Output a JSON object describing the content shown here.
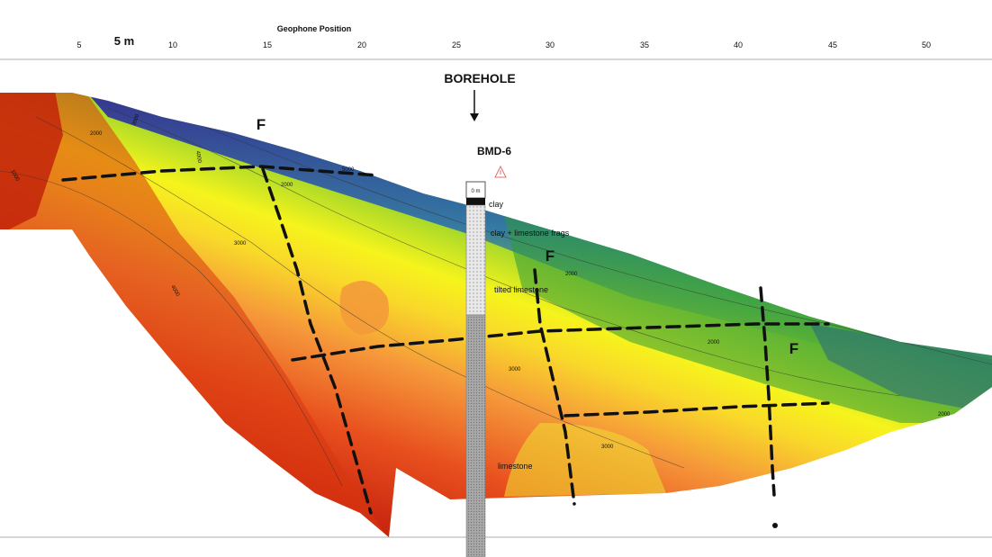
{
  "axis": {
    "title": "Geophone Position",
    "ticks": [
      "5",
      "10",
      "15",
      "20",
      "25",
      "30",
      "35",
      "40",
      "45",
      "50"
    ],
    "scale_label": "5 m"
  },
  "borehole": {
    "label": "BOREHOLE",
    "name": "BMD-6",
    "log_header": "0 m",
    "layers": [
      "clay",
      "clay + limestone frags",
      "tilted limestone",
      "limestone"
    ]
  },
  "faults": [
    "F",
    "F",
    "F"
  ],
  "contours": [
    "1000",
    "2000",
    "3000",
    "4000",
    "5000",
    "2000",
    "3000",
    "4000",
    "2000",
    "3000",
    "3000",
    "2000",
    "2000"
  ],
  "colors": {
    "low_velocity": "#2b1f9a",
    "mid_velocity": "#3fb63a",
    "yellow": "#f7f21a",
    "high_velocity": "#c01a0a",
    "fault_line": "#111111"
  }
}
